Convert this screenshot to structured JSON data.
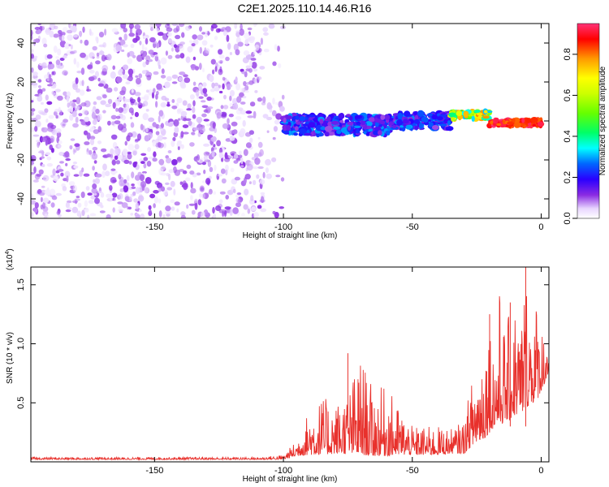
{
  "title": "C2E1.2025.110.14.46.R16",
  "chart_data": [
    {
      "type": "heatmap",
      "xlabel": "Height of straight line (km)",
      "ylabel": "Frequency (Hz)",
      "xlim": [
        -198,
        3
      ],
      "ylim": [
        -50,
        50
      ],
      "xticks": [
        "-150",
        "-100",
        "-50",
        "0"
      ],
      "xtick_values": [
        -150,
        -100,
        -50,
        0
      ],
      "yticks": [
        "-40",
        "-20",
        "0",
        "20",
        "40"
      ],
      "ytick_values": [
        -40,
        -20,
        0,
        20,
        40
      ],
      "colorbar": {
        "label": "Normalized spectral amplitude",
        "range": [
          0,
          0.95
        ],
        "ticks": [
          "0.0",
          "0.2",
          "0.4",
          "0.6",
          "0.8"
        ],
        "tick_values": [
          0.0,
          0.2,
          0.4,
          0.6,
          0.8
        ]
      },
      "regions": [
        {
          "x_range": [
            -198,
            -100
          ],
          "freq_range": [
            -50,
            50
          ],
          "amplitude": [
            0.02,
            0.12
          ]
        },
        {
          "x_range": [
            -100,
            -57
          ],
          "freq_center": -2,
          "freq_halfwidth": 5,
          "amplitude": [
            0.1,
            0.3
          ]
        },
        {
          "x_range": [
            -57,
            -35
          ],
          "freq_center": 0,
          "freq_halfwidth": 4,
          "amplitude": [
            0.1,
            0.3
          ]
        },
        {
          "x_range": [
            -35,
            -20
          ],
          "freq_center": 3,
          "freq_halfwidth": 2,
          "amplitude": [
            0.3,
            0.8
          ]
        },
        {
          "x_range": [
            -20,
            0
          ],
          "freq_center": -1,
          "freq_halfwidth": 1.5,
          "amplitude": [
            0.8,
            0.95
          ]
        }
      ],
      "grid": false
    },
    {
      "type": "line",
      "xlabel": "Height of straight line (km)",
      "ylabel": "SNR (10 * v/v)",
      "y_scale_label": "(x10",
      "y_scale_exponent": "4",
      "xlim": [
        -198,
        3
      ],
      "ylim": [
        0,
        1.65
      ],
      "xticks": [
        "-150",
        "-100",
        "-50",
        "0"
      ],
      "xtick_values": [
        -150,
        -100,
        -50,
        0
      ],
      "yticks": [
        "0.5",
        "1.0",
        "1.5"
      ],
      "ytick_values": [
        0.5,
        1.0,
        1.5
      ],
      "series_color": "#e8312c",
      "envelope": {
        "x": [
          -198,
          -110,
          -100,
          -95,
          -90,
          -85,
          -80,
          -75,
          -70,
          -65,
          -60,
          -55,
          -50,
          -45,
          -40,
          -35,
          -30,
          -26,
          -24,
          -22,
          -20,
          -18,
          -16,
          -14,
          -12,
          -10,
          -8,
          -6,
          -4,
          -2,
          0,
          2,
          3
        ],
        "baseline": [
          0.02,
          0.02,
          0.02,
          0.05,
          0.06,
          0.06,
          0.07,
          0.07,
          0.06,
          0.05,
          0.05,
          0.06,
          0.06,
          0.06,
          0.06,
          0.07,
          0.07,
          0.15,
          0.18,
          0.2,
          0.25,
          0.3,
          0.3,
          0.35,
          0.35,
          0.4,
          0.4,
          0.45,
          0.5,
          0.5,
          0.6,
          0.7,
          0.75
        ],
        "peak": [
          0.04,
          0.04,
          0.06,
          0.18,
          0.45,
          0.55,
          0.5,
          0.6,
          0.9,
          0.6,
          0.65,
          0.45,
          0.3,
          0.3,
          0.3,
          0.28,
          0.35,
          0.8,
          0.9,
          1.1,
          1.25,
          1.0,
          1.5,
          1.1,
          1.3,
          1.35,
          1.2,
          1.65,
          1.35,
          1.4,
          1.2,
          1.1,
          1.1
        ]
      },
      "annotations": [
        {
          "x": -75,
          "y": 0.92
        },
        {
          "x": -20,
          "y": 1.25
        },
        {
          "x": -12,
          "y": 1.35
        },
        {
          "x": -6,
          "y": 1.65
        }
      ],
      "grid": false
    }
  ]
}
